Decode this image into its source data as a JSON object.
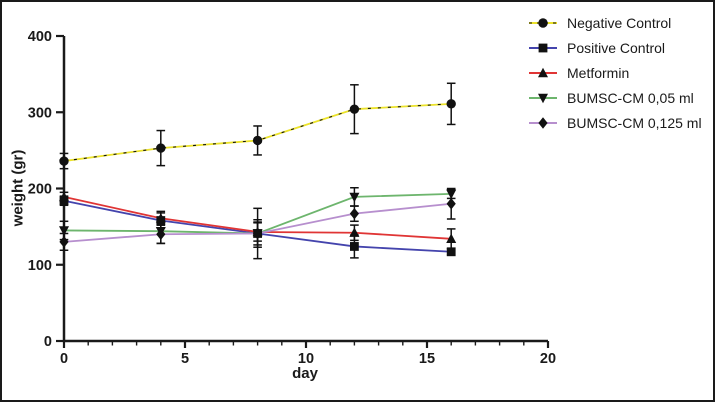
{
  "figure": {
    "background": "#ffffff",
    "frame_border": "#1a1a1a",
    "text_color": "#1a1a1a",
    "marker_color": "#111111"
  },
  "chart_data": {
    "type": "line",
    "title": "",
    "xlabel": "day",
    "ylabel": "weight (gr)",
    "xlim": [
      0,
      20
    ],
    "ylim": [
      0,
      400
    ],
    "xticks": [
      0,
      5,
      10,
      15,
      20
    ],
    "x_minor_tick_step": 1,
    "yticks": [
      0,
      100,
      200,
      300,
      400
    ],
    "x": [
      0,
      4,
      8,
      12,
      16
    ],
    "grid": false,
    "error_bars": true,
    "legend_position": "top-right",
    "series": [
      {
        "name": "Negative Control",
        "color": "#ece32a",
        "marker": "circle",
        "line_overlay": "black-dashed",
        "values": [
          236,
          253,
          263,
          304,
          311
        ],
        "errors": [
          10,
          23,
          19,
          32,
          27
        ]
      },
      {
        "name": "Positive Control",
        "color": "#4444ad",
        "marker": "square",
        "line_overlay": "none",
        "values": [
          184,
          158,
          141,
          124,
          117
        ],
        "errors": [
          6,
          10,
          33,
          15,
          4
        ]
      },
      {
        "name": "Metformin",
        "color": "#e03535",
        "marker": "triangle-up",
        "line_overlay": "none",
        "values": [
          189,
          161,
          143,
          142,
          134
        ],
        "errors": [
          6,
          9,
          12,
          10,
          13
        ]
      },
      {
        "name": "BUMSC-CM 0,05 ml",
        "color": "#6db56d",
        "marker": "triangle-down",
        "line_overlay": "none",
        "values": [
          145,
          144,
          141,
          189,
          193
        ],
        "errors": [
          12,
          16,
          18,
          12,
          6
        ]
      },
      {
        "name": "BUMSC-CM 0,125 ml",
        "color": "#b78fce",
        "marker": "diamond",
        "line_overlay": "none",
        "values": [
          130,
          140,
          141,
          167,
          180
        ],
        "errors": [
          11,
          12,
          15,
          10,
          20
        ]
      }
    ]
  }
}
